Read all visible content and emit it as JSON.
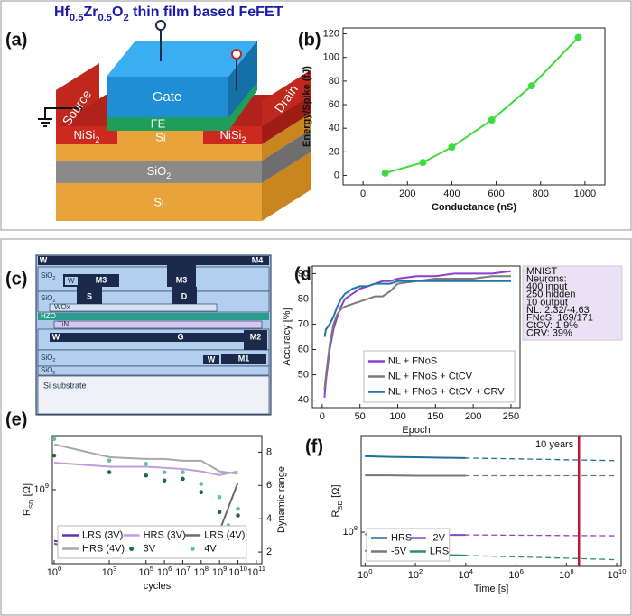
{
  "figure": {
    "title": "Hf_{0.5}Zr_{0.5}O_{2} thin film based FeFET",
    "panels": [
      "(a)",
      "(b)",
      "(c)",
      "(d)",
      "(e)",
      "(f)"
    ]
  },
  "diagram_a": {
    "gate": "Gate",
    "fe": "FE",
    "source": "Source",
    "drain": "Drain",
    "nisi_left": "NiSi_{2}",
    "si_channel": "Si",
    "nisi_right": "NiSi_{2}",
    "sio2": "SiO_{2}",
    "si_substrate": "Si"
  },
  "diagram_c": {
    "w_top": "W",
    "m4": "M4",
    "sio2_top": "SiO_{2}",
    "w_m3": "W",
    "m3_left": "M3",
    "m3_right": "M3",
    "sio2_mid": "SiO_{2}",
    "s": "S",
    "d": "D",
    "wox": "WOx",
    "hzo": "HZO",
    "tin": "TiN",
    "w_gate": "W",
    "g": "G",
    "m2": "M2",
    "sio2_low": "SiO_{2}",
    "w_m1": "W",
    "m1": "M1",
    "sio2_bottom": "SiO_{2}",
    "substrate": "Si substrate"
  },
  "chart_data": [
    {
      "type": "line",
      "xlabel": "Conductance (nS)",
      "ylabel": "Energy/Spike (fJ)",
      "x": [
        100,
        270,
        400,
        580,
        760,
        970
      ],
      "series": [
        {
          "color": "#3ddc3d",
          "values": [
            2,
            11,
            24,
            47,
            76,
            117
          ]
        }
      ],
      "markers": true,
      "xlim": [
        -90,
        1090
      ],
      "ylim": [
        -8,
        125
      ],
      "xticks": [
        0,
        200,
        400,
        600,
        800,
        1000
      ],
      "yticks": [
        0,
        20,
        40,
        60,
        80,
        100,
        120
      ]
    },
    {
      "type": "line",
      "xlabel": "Epoch",
      "ylabel": "Accuracy [%]",
      "x": [
        3,
        5,
        10,
        15,
        20,
        25,
        30,
        40,
        50,
        60,
        70,
        80,
        90,
        100,
        125,
        150,
        175,
        200,
        225,
        250
      ],
      "series": [
        {
          "name": "NL + FNoS",
          "color": "#8a3fd1",
          "values": [
            41,
            48,
            60,
            68,
            73,
            77,
            80,
            82,
            84,
            85,
            86,
            87,
            87,
            88,
            89,
            89,
            90,
            90,
            90,
            91
          ]
        },
        {
          "name": "NL + FNoS + CtCV",
          "color": "#7a7a7a",
          "values": [
            44,
            50,
            62,
            70,
            74,
            76,
            77,
            78,
            79,
            80,
            81,
            81,
            83,
            86,
            87,
            88,
            88,
            88,
            89,
            89
          ]
        },
        {
          "name": "NL + FNoS + CtCV + CRV",
          "color": "#1f78a4",
          "values": [
            65,
            68,
            70,
            73,
            77,
            80,
            82,
            84,
            85,
            85,
            86,
            86,
            86,
            87,
            87,
            87,
            87,
            87,
            87,
            87
          ]
        }
      ],
      "xlim": [
        -13,
        262
      ],
      "ylim": [
        37,
        93
      ],
      "xticks": [
        0,
        50,
        100,
        150,
        200,
        250
      ],
      "yticks": [
        40,
        50,
        60,
        70,
        80,
        90
      ],
      "legend": "lower right",
      "legend_columns": 1,
      "info": [
        "MNIST",
        "Neurons:",
        "400 input",
        "250 hidden",
        "10 output",
        "NL: 2.32/-4.63",
        "FNoS: 169/171",
        "CtCV: 1.9%",
        "CRV: 39%"
      ]
    },
    {
      "type": "line",
      "xlabel": "cycles",
      "ylabel": "R_{SD} [Ω]",
      "y2label": "Dynamic range",
      "xscale": "log",
      "yscale": "log",
      "x": [
        1,
        1000,
        100000,
        1000000,
        10000000,
        100000000,
        1000000000,
        10000000000
      ],
      "series": [
        {
          "name": "LRS (3V)",
          "color": "#6a2bb5",
          "values": [
            270000000,
            210000000,
            240000000,
            260000000,
            280000000,
            290000000,
            300000000,
            320000000
          ]
        },
        {
          "name": "HRS (3V)",
          "color": "#c39be0",
          "values": [
            2000000000,
            1800000000,
            1800000000,
            1750000000,
            1700000000,
            1600000000,
            1450000000,
            1600000000
          ]
        },
        {
          "name": "LRS (4V)",
          "color": "#6b6b6b",
          "values": [
            250000000,
            190000000,
            220000000,
            250000000,
            290000000,
            330000000,
            350000000,
            1200000000
          ]
        },
        {
          "name": "HRS (4V)",
          "color": "#a8a8a8",
          "values": [
            3200000000,
            2300000000,
            2200000000,
            2200000000,
            2100000000,
            2100000000,
            1600000000,
            1500000000
          ]
        },
        {
          "name": "3V",
          "color": "#1d6b4a",
          "axis": "y2",
          "marker": "dot",
          "x": [
            1,
            1000,
            100000,
            1000000,
            10000000,
            100000000,
            1000000000,
            3000000000,
            10000000000
          ],
          "values": [
            7.8,
            6.8,
            6.6,
            6.3,
            6.4,
            5.6,
            4.4,
            3.0,
            4.2
          ]
        },
        {
          "name": "4V",
          "color": "#5fc39b",
          "axis": "y2",
          "marker": "dot",
          "x": [
            1,
            1000,
            100000,
            1000000,
            10000000,
            100000000,
            1000000000,
            3000000000,
            10000000000
          ],
          "values": [
            8.8,
            7.5,
            7.3,
            6.8,
            6.8,
            6.1,
            5.3,
            3.6,
            4.6
          ]
        }
      ],
      "xlim": [
        0.8,
        200000000000
      ],
      "ylim": [
        150000000,
        4000000000
      ],
      "y2lim": [
        1.3,
        9
      ],
      "xticks": [
        {
          "value": 1,
          "label": "10^{0}"
        },
        {
          "value": 1000,
          "label": "10^{3}"
        },
        {
          "value": 100000,
          "label": "10^{5}"
        },
        {
          "value": 1000000,
          "label": "10^{6}"
        },
        {
          "value": 10000000,
          "label": "10^{7}"
        },
        {
          "value": 100000000,
          "label": "10^{8}"
        },
        {
          "value": 1000000000,
          "label": "10^{9}"
        },
        {
          "value": 10000000000,
          "label": "10^{10}"
        },
        {
          "value": 100000000000,
          "label": "10^{11}"
        }
      ],
      "yticks": [
        {
          "value": 1000000000,
          "label": "10^{9}"
        }
      ],
      "y2ticks": [
        2,
        4,
        6,
        8
      ],
      "legend": "lower left",
      "legend_columns": 3
    },
    {
      "type": "line",
      "xlabel": "Time [s]",
      "ylabel": "R_{SD} [Ω]",
      "xscale": "log",
      "yscale": "log",
      "x": [
        1,
        10,
        100,
        1000,
        10000,
        1000000,
        100000000,
        10000000000
      ],
      "series": [
        {
          "name": "HRS",
          "color": "#1f6f9f",
          "values": [
            1450000000,
            1420000000,
            1400000000,
            1380000000,
            1360000000,
            null,
            null,
            null
          ],
          "fit": [
            1450000000,
            1420000000,
            1400000000,
            1380000000,
            1360000000,
            1320000000,
            1280000000,
            1240000000
          ]
        },
        {
          "name": "-2V",
          "color": "#8e44c9",
          "values": [
            93000000,
            92000000,
            92000000,
            91000000,
            91000000,
            null,
            null,
            null
          ],
          "fit": [
            93000000,
            92000000,
            92000000,
            91000000,
            91000000,
            90000000,
            89000000,
            88000000
          ]
        },
        {
          "name": "-5V",
          "color": "#777777",
          "values": [
            740000000,
            740000000,
            730000000,
            730000000,
            730000000,
            null,
            null,
            null
          ],
          "fit": [
            740000000,
            740000000,
            730000000,
            730000000,
            730000000,
            730000000,
            730000000,
            730000000
          ]
        },
        {
          "name": "LRS",
          "color": "#2a8f6a",
          "values": [
            52000000,
            50000000,
            47000000,
            45000000,
            44000000,
            null,
            null,
            null
          ],
          "fit": [
            52000000,
            50000000,
            47000000,
            45000000,
            44000000,
            42000000,
            40000000,
            38000000
          ]
        }
      ],
      "xlim": [
        0.7,
        15000000000
      ],
      "ylim": [
        30000000,
        3000000000
      ],
      "xticks": [
        {
          "value": 1,
          "label": "10^{0}"
        },
        {
          "value": 100,
          "label": "10^{2}"
        },
        {
          "value": 10000,
          "label": "10^{4}"
        },
        {
          "value": 1000000,
          "label": "10^{6}"
        },
        {
          "value": 100000000,
          "label": "10^{8}"
        },
        {
          "value": 10000000000,
          "label": "10^{10}"
        }
      ],
      "yticks": [
        {
          "value": 100000000,
          "label": "10^{8}"
        }
      ],
      "legend": "lower left",
      "legend_columns": 2,
      "annotations": [
        {
          "text": "10 years",
          "x": 315360000,
          "color": "#c0152f"
        }
      ]
    }
  ]
}
